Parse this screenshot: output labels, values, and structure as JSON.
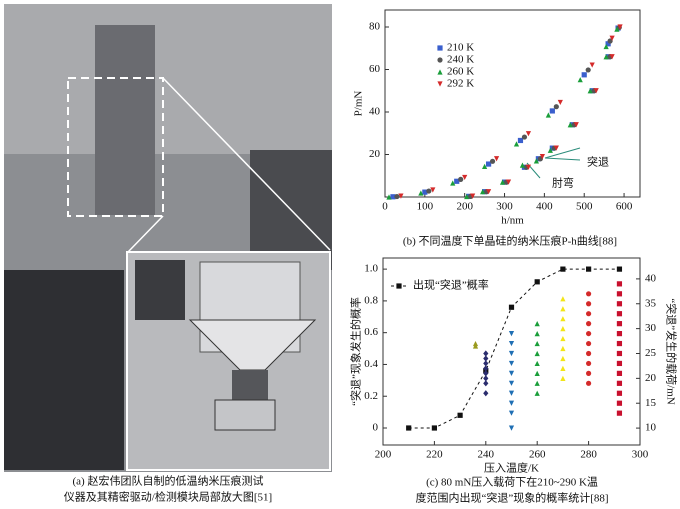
{
  "photo": {
    "caption": [
      "(a) 赵宏伟团队自制的低温纳米压痕测试",
      "仪器及其精密驱动/检测模块局部放大图[51]"
    ]
  },
  "chart_data": [
    {
      "type": "scatter",
      "caption": [
        "(b) 不同温度下单晶硅的纳米压痕P-h曲线[88]"
      ],
      "xlabel": "h/nm",
      "ylabel": "P/mN",
      "xlim": [
        0,
        640
      ],
      "ylim": [
        0,
        88
      ],
      "xticks": [
        0,
        100,
        200,
        300,
        400,
        500,
        600
      ],
      "yticks": [
        20,
        40,
        60,
        80
      ],
      "legend": "upper right",
      "annotations": [
        "突退",
        "肘弯"
      ],
      "series": [
        {
          "name": "210 K",
          "color": "#3a5fcd",
          "marker": "square",
          "x": [
            20,
            100,
            180,
            260,
            340,
            420,
            500,
            560,
            585,
            560,
            520,
            470,
            420,
            385,
            350,
            300,
            250,
            210
          ],
          "values": [
            0.1,
            2.3,
            7.4,
            15.5,
            26.6,
            40.5,
            57.5,
            72.1,
            79.5,
            66,
            50,
            34,
            23,
            18,
            14,
            7,
            2.5,
            0.3
          ]
        },
        {
          "name": "240 K",
          "color": "#555555",
          "marker": "circle",
          "x": [
            30,
            110,
            190,
            270,
            350,
            430,
            510,
            565,
            588,
            565,
            525,
            475,
            425,
            390,
            355,
            305,
            255,
            215
          ],
          "values": [
            0.2,
            2.8,
            8.3,
            16.8,
            28.2,
            42.5,
            59.8,
            73.4,
            79.8,
            66,
            50,
            34,
            23,
            18,
            14,
            7,
            2.5,
            0.3
          ]
        },
        {
          "name": "260 K",
          "color": "#1a9e3a",
          "marker": "triangle",
          "x": [
            10,
            90,
            170,
            250,
            330,
            410,
            490,
            555,
            582,
            555,
            515,
            465,
            415,
            380,
            345,
            295,
            245,
            205
          ],
          "values": [
            0,
            1.9,
            6.6,
            14.4,
            25,
            38.6,
            55.2,
            70.8,
            79,
            66,
            50,
            34,
            22,
            17,
            15,
            7,
            2.5,
            0.2
          ]
        },
        {
          "name": "292 K",
          "color": "#d42a2a",
          "marker": "triangle-down",
          "x": [
            40,
            120,
            200,
            280,
            360,
            440,
            520,
            570,
            590,
            570,
            530,
            480,
            430,
            395,
            360,
            310,
            260,
            220
          ],
          "values": [
            0.4,
            3.3,
            9.2,
            18,
            29.8,
            44.5,
            62.1,
            74.7,
            80,
            66,
            50,
            34,
            23,
            19,
            14,
            7,
            2.5,
            0.4
          ]
        }
      ]
    },
    {
      "type": "scatter",
      "caption": [
        "(c) 80 mN压入载荷下在210~290 K温",
        "度范围内出现“突退”现象的概率统计[88]"
      ],
      "xlabel": "压入温度/K",
      "ylabel": "“突退”现象发生的概率",
      "y2label": "“突退”发生的载荷/mN",
      "xlim": [
        200,
        300
      ],
      "ylim": [
        -0.107,
        1.07
      ],
      "y2lim": [
        6.6,
        44.2
      ],
      "xticks": [
        200,
        220,
        240,
        260,
        280,
        300
      ],
      "yticks": [
        0,
        0.2,
        0.4,
        0.6,
        0.8,
        {
          "value": 1,
          "label": "1.0"
        }
      ],
      "y2ticks": [
        10,
        15,
        20,
        25,
        30,
        35,
        40
      ],
      "legend": "upper left",
      "series": [
        {
          "name": "出现“突退”概率",
          "color": "#111111",
          "marker": "square",
          "line": "dashed",
          "x": [
            210,
            220,
            230,
            240,
            250,
            260,
            270,
            280,
            292
          ],
          "values": [
            0,
            0,
            0.08,
            0.36,
            0.76,
            0.92,
            1,
            1,
            1
          ]
        },
        {
          "color": "#9a9a1e",
          "marker": "triangle",
          "axis": "y2",
          "x": [
            236,
            236
          ],
          "values": [
            26.5,
            27
          ]
        },
        {
          "color": "#2b2d6e",
          "marker": "diamond",
          "axis": "y2",
          "x": [
            240,
            240,
            240,
            240,
            240,
            240,
            240,
            240
          ],
          "values": [
            17,
            19,
            20,
            21,
            22,
            23,
            24,
            25
          ]
        },
        {
          "color": "#1f6fb4",
          "marker": "triangle-down",
          "axis": "y2",
          "x": [
            250,
            250,
            250,
            250,
            250,
            250,
            250,
            250,
            250,
            250
          ],
          "values": [
            10,
            13,
            15,
            17,
            19,
            21,
            23,
            25,
            27,
            29
          ]
        },
        {
          "color": "#1a9e3a",
          "marker": "triangle",
          "axis": "y2",
          "x": [
            260,
            260,
            260,
            260,
            260,
            260,
            260,
            260
          ],
          "values": [
            17,
            19,
            21,
            23,
            25,
            27,
            29,
            31
          ]
        },
        {
          "color": "#f2e51a",
          "marker": "triangle",
          "axis": "y2",
          "x": [
            270,
            270,
            270,
            270,
            270,
            270,
            270,
            270,
            270
          ],
          "values": [
            20,
            22,
            24,
            26,
            28,
            30,
            32,
            34,
            36
          ]
        },
        {
          "color": "#d42a2a",
          "marker": "circle",
          "axis": "y2",
          "x": [
            280,
            280,
            280,
            280,
            280,
            280,
            280,
            280,
            280,
            280
          ],
          "values": [
            19,
            21,
            23,
            25,
            27,
            29,
            31,
            33,
            35,
            37
          ]
        },
        {
          "color": "#c8102e",
          "marker": "square",
          "axis": "y2",
          "x": [
            292,
            292,
            292,
            292,
            292,
            292,
            292,
            292,
            292,
            292,
            292,
            292,
            292,
            292
          ],
          "values": [
            13,
            15,
            17,
            19,
            21,
            23,
            25,
            27,
            29,
            31,
            33,
            35,
            37,
            39
          ]
        }
      ]
    }
  ]
}
